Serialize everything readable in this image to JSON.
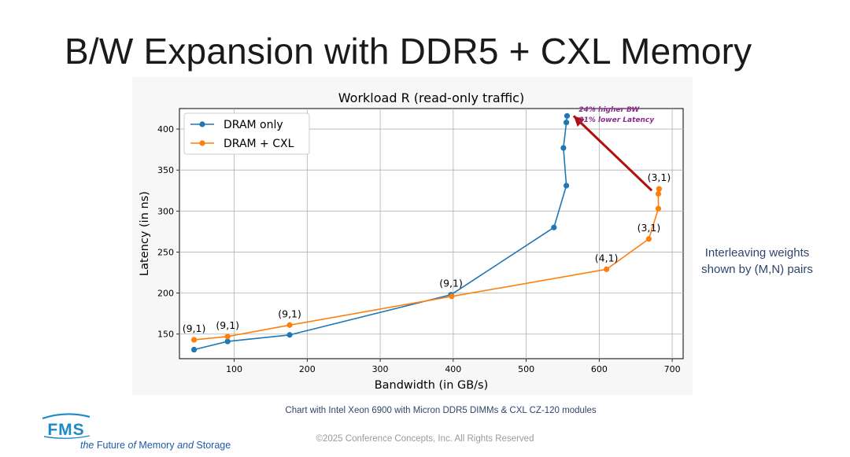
{
  "slide": {
    "title": "B/W Expansion with DDR5 + CXL Memory",
    "side_note": [
      "Interleaving weights",
      "shown by (M,N) pairs"
    ],
    "caption": "Chart with Intel Xeon 6900 with Micron DDR5 DIMMs & CXL CZ-120 modules",
    "copyright": "©2025 Conference Concepts, Inc. All Rights Reserved",
    "logo": {
      "mark": "FMS",
      "tagline": {
        "part1": "the",
        "part2": "Future",
        "part3": "of",
        "part4": "Memory",
        "part5": "and",
        "part6": "Storage"
      }
    }
  },
  "chart_data": {
    "type": "line",
    "title": "Workload R (read-only traffic)",
    "xlabel": "Bandwidth (in GB/s)",
    "ylabel": "Latency (in ns)",
    "xlim": [
      25,
      715
    ],
    "ylim": [
      120,
      425
    ],
    "xticks": [
      100,
      200,
      300,
      400,
      500,
      600,
      700
    ],
    "yticks": [
      150,
      200,
      250,
      300,
      350,
      400
    ],
    "grid": true,
    "legend_position": "top-left",
    "series": [
      {
        "name": "DRAM only",
        "color": "#1f77b4",
        "x": [
          45,
          91,
          176,
          397,
          538,
          555,
          551,
          555,
          556
        ],
        "y": [
          131,
          141,
          149,
          198,
          280,
          331,
          377,
          408,
          416
        ]
      },
      {
        "name": "DRAM + CXL",
        "color": "#ff7f0e",
        "x": [
          45,
          91,
          176,
          398,
          610,
          668,
          681,
          681,
          682
        ],
        "y": [
          143,
          147,
          161,
          196,
          229,
          266,
          303,
          321,
          327
        ]
      }
    ],
    "point_labels": [
      {
        "text": "(9,1)",
        "x": 45,
        "y": 143
      },
      {
        "text": "(9,1)",
        "x": 91,
        "y": 147
      },
      {
        "text": "(9,1)",
        "x": 176,
        "y": 161
      },
      {
        "text": "(9,1)",
        "x": 397,
        "y": 198
      },
      {
        "text": "(4,1)",
        "x": 610,
        "y": 229
      },
      {
        "text": "(3,1)",
        "x": 668,
        "y": 266
      },
      {
        "text": "(3,1)",
        "x": 682,
        "y": 327
      }
    ],
    "annotation": {
      "lines": [
        "24% higher BW",
        "21% lower Latency"
      ],
      "color": "#8b2a8f",
      "arrow_color": "#b01010",
      "arrow_from": [
        672,
        325
      ],
      "arrow_to": [
        565,
        416
      ]
    }
  }
}
